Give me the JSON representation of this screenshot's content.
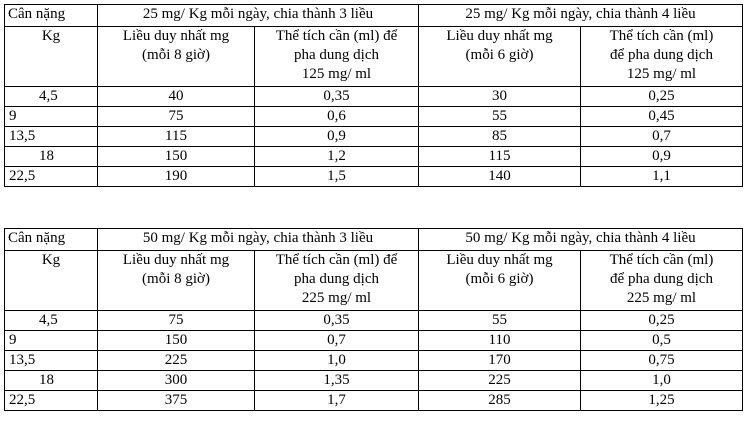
{
  "tables": [
    {
      "header_top": [
        "Cân nặng",
        "25 mg/ Kg mỗi ngày, chia thành 3 liều",
        "25 mg/ Kg mỗi ngày, chia thành 4 liều"
      ],
      "header_sub": [
        [
          "Kg"
        ],
        [
          "Liều duy nhất mg",
          "(mỗi 8 giờ)"
        ],
        [
          "Thể tích cần (ml) để",
          "pha dung dịch",
          "125 mg/ ml"
        ],
        [
          "Liều duy nhất mg",
          "(mỗi 6 giờ)"
        ],
        [
          "Thể tích cần (ml)",
          "để pha dung dịch",
          "125 mg/ ml"
        ]
      ],
      "rows": [
        [
          "4,5",
          "40",
          "0,35",
          "30",
          "0,25"
        ],
        [
          "9",
          "75",
          "0,6",
          "55",
          "0,45"
        ],
        [
          "13,5",
          "115",
          "0,9",
          "85",
          "0,7"
        ],
        [
          "18",
          "150",
          "1,2",
          "115",
          "0,9"
        ],
        [
          "22,5",
          "190",
          "1,5",
          "140",
          "1,1"
        ]
      ]
    },
    {
      "header_top": [
        "Cân nặng",
        "50 mg/ Kg mỗi ngày, chia thành 3 liều",
        "50 mg/ Kg mỗi ngày, chia thành 4 liều"
      ],
      "header_sub": [
        [
          "Kg"
        ],
        [
          "Liều duy nhất mg",
          "(mỗi 8 giờ)"
        ],
        [
          "Thể tích cần (ml) để",
          "pha dung dịch",
          "225 mg/ ml"
        ],
        [
          "Liều duy nhất mg",
          "(mỗi 6 giờ)"
        ],
        [
          "Thể tích cần (ml)",
          "để pha dung dịch",
          "225 mg/ ml"
        ]
      ],
      "rows": [
        [
          "4,5",
          "75",
          "0,35",
          "55",
          "0,25"
        ],
        [
          "9",
          "150",
          "0,7",
          "110",
          "0,5"
        ],
        [
          "13,5",
          "225",
          "1,0",
          "170",
          "0,75"
        ],
        [
          "18",
          "300",
          "1,35",
          "225",
          "1,0"
        ],
        [
          "22,5",
          "375",
          "1,7",
          "285",
          "1,25"
        ]
      ]
    }
  ]
}
